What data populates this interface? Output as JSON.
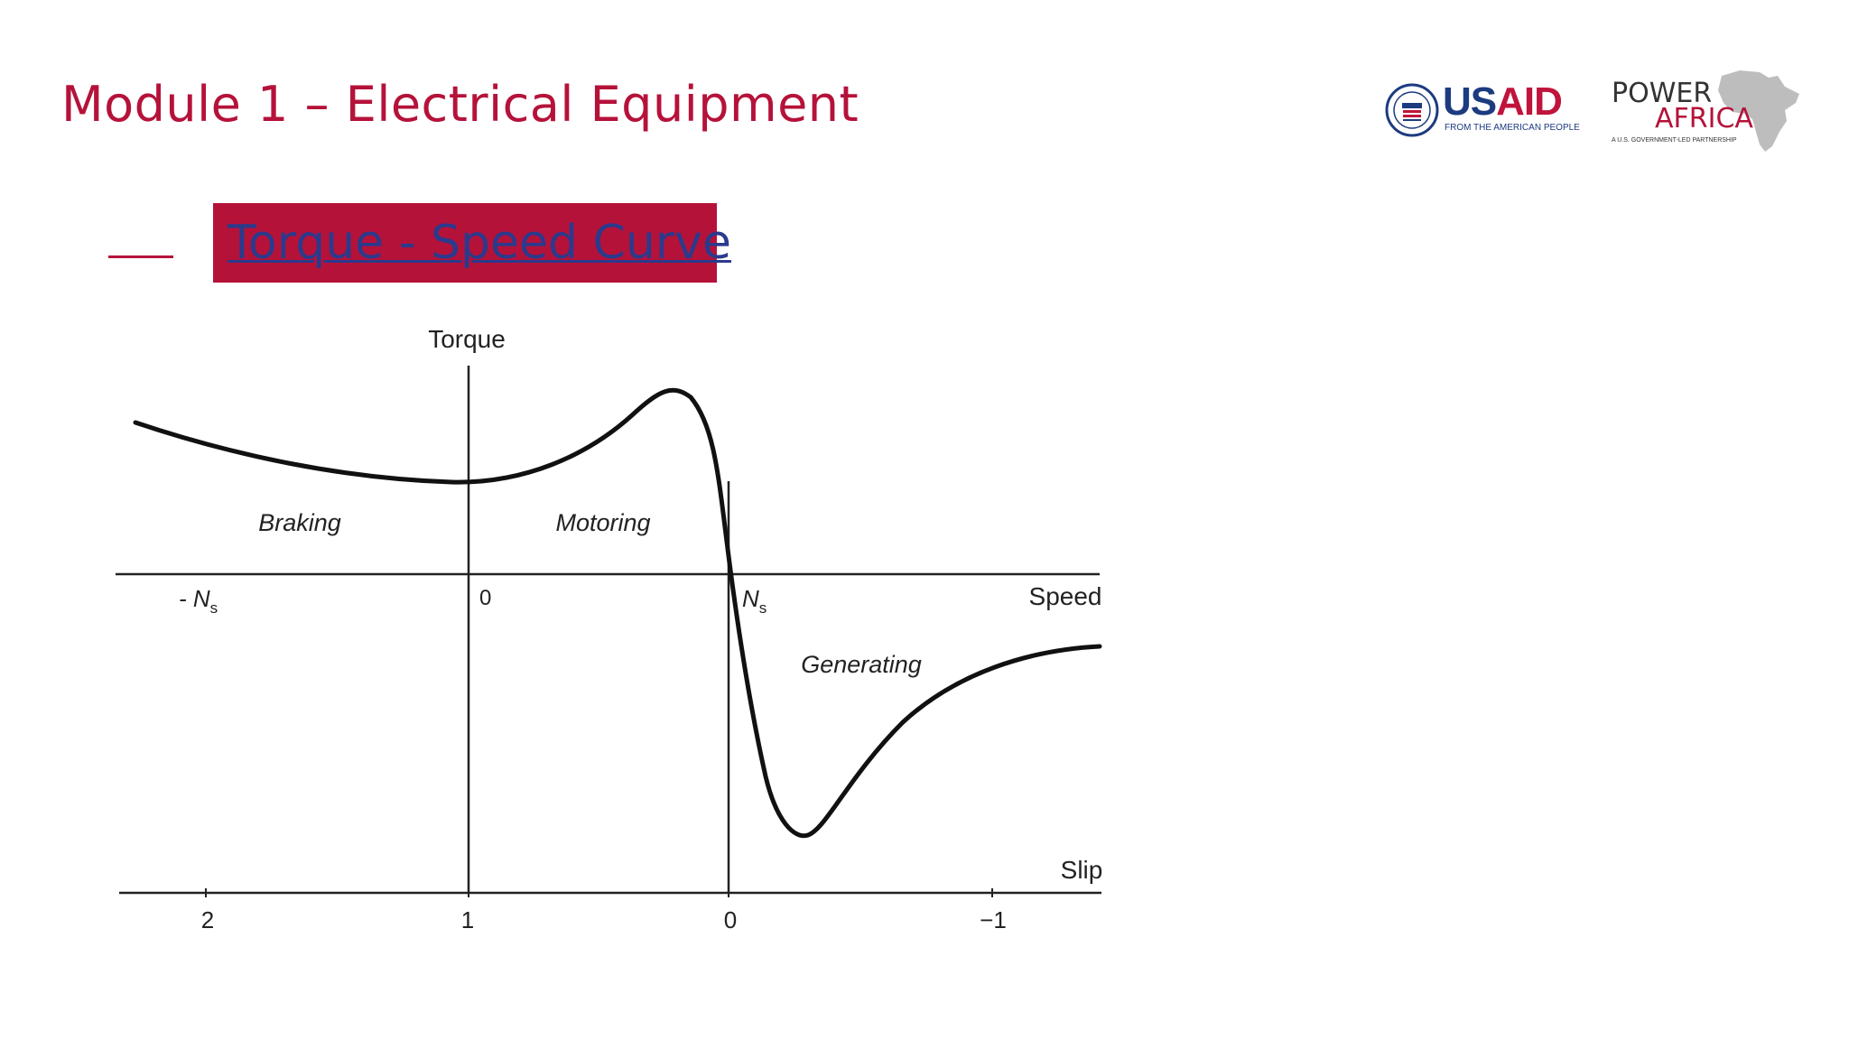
{
  "header": {
    "title": "Module 1 – Electrical Equipment",
    "subtitle": "Torque - Speed Curve"
  },
  "logos": {
    "usaid": {
      "name_blue": "US",
      "name_red": "AID",
      "tagline": "FROM THE AMERICAN PEOPLE",
      "seal_icon": "usaid-seal-icon"
    },
    "power_africa": {
      "line1": "POWER",
      "line2": "AFRICA",
      "tagline": "A U.S. GOVERNMENT-LED PARTNERSHIP",
      "map_icon": "africa-map-icon"
    }
  },
  "colors": {
    "brand_red": "#b5123a",
    "link_blue": "#2b3a8c",
    "usaid_blue": "#1c3b80"
  },
  "diagram": {
    "y_axis_label": "Torque",
    "speed_axis_label": "Speed",
    "slip_axis_label": "Slip",
    "speed_ticks": [
      {
        "label_prefix": "- N",
        "sub": "s"
      },
      {
        "label_prefix": "0",
        "sub": ""
      },
      {
        "label_prefix": "N",
        "sub": "s"
      }
    ],
    "slip_ticks": [
      "2",
      "1",
      "0",
      "−1"
    ],
    "regions": [
      "Braking",
      "Motoring",
      "Generating"
    ]
  }
}
